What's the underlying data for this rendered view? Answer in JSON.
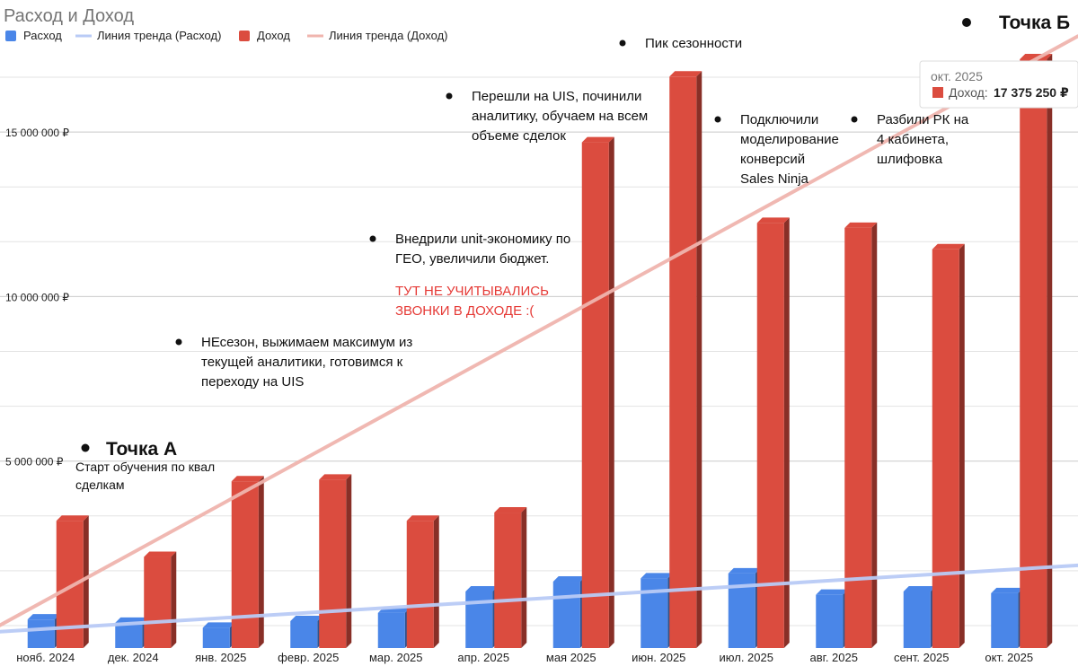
{
  "chart_data": {
    "type": "bar",
    "title": "Расход и Доход",
    "categories": [
      "нояб. 2024",
      "дек. 2024",
      "янв. 2025",
      "февр. 2025",
      "мар. 2025",
      "апр. 2025",
      "мая 2025",
      "июн. 2025",
      "июл. 2025",
      "авг. 2025",
      "сент. 2025",
      "окт. 2025"
    ],
    "series": [
      {
        "name": "Расход",
        "color": "#4a86e8",
        "values": [
          350000,
          250000,
          100000,
          300000,
          550000,
          1200000,
          1500000,
          1600000,
          1750000,
          1100000,
          1200000,
          1150000
        ]
      },
      {
        "name": "Доход",
        "color": "#db4c3f",
        "values": [
          3350000,
          2250000,
          4550000,
          4600000,
          3350000,
          3600000,
          14850000,
          16850000,
          12400000,
          12250000,
          11600000,
          17375250
        ]
      }
    ],
    "trendlines": [
      {
        "name": "Линия тренда (Расход)",
        "color": "#b9cbf6",
        "start": 0,
        "end": 1800000
      },
      {
        "name": "Линия тренда (Доход)",
        "color": "#f0b5ae",
        "start": 1000000,
        "end": 17000000
      }
    ],
    "legend": [
      "Расход",
      "Линия тренда (Расход)",
      "Доход",
      "Линия тренда (Доход)"
    ],
    "yticks": [
      {
        "value": 5000000,
        "label": "5 000 000 ₽"
      },
      {
        "value": 10000000,
        "label": "10 000 000 ₽"
      },
      {
        "value": 15000000,
        "label": "15 000 000 ₽"
      }
    ],
    "ylim": [
      -500000,
      18500000
    ],
    "xlabel": "",
    "ylabel": "",
    "legend_position": "top-left",
    "grid": true,
    "annotations": [
      {
        "id": "a0",
        "category_index": 0,
        "lines": [
          "Старт обучения по квал",
          "сделкам"
        ],
        "heading": "Точка А",
        "style": "point"
      },
      {
        "id": "a1",
        "category_index": 2,
        "lines": [
          "НЕсезон, выжимаем максимум из",
          "текущей аналитики, готовимся к",
          "переходу на UIS"
        ]
      },
      {
        "id": "a2",
        "category_index": 4,
        "lines": [
          "Внедрили unit-экономику по",
          "ГЕО, увеличили бюджет."
        ],
        "warning_lines": [
          "ТУТ НЕ УЧИТЫВАЛИСЬ",
          "ЗВОНКИ В ДОХОДЕ :("
        ]
      },
      {
        "id": "a3",
        "category_index": 5,
        "lines": [
          "Перешли на UIS, починили",
          "аналитику, обучаем на всем",
          "объеме сделок"
        ]
      },
      {
        "id": "a4",
        "category_index": 7,
        "lines": [
          "Пик сезонности"
        ]
      },
      {
        "id": "a5",
        "category_index": 8,
        "lines": [
          "Подключили",
          "моделирование",
          "конверсий",
          "Sales Ninja"
        ]
      },
      {
        "id": "a6",
        "category_index": 10,
        "lines": [
          "Разбили РК на",
          "4 кабинета,",
          "шлифовка"
        ]
      },
      {
        "id": "a7",
        "category_index": 11,
        "heading": "Точка Б",
        "style": "point-corner"
      }
    ],
    "tooltip": {
      "date": "окт. 2025",
      "series_label": "Доход:",
      "value": "17 375 250 ₽",
      "category_index": 11
    }
  }
}
